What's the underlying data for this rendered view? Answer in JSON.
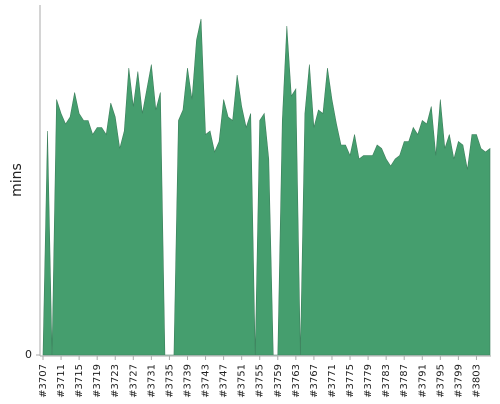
{
  "chart_data": {
    "type": "area",
    "y_label": "mins",
    "color": "#459e6e",
    "categories": [
      "#3707",
      null,
      null,
      null,
      "#3711",
      null,
      null,
      null,
      "#3715",
      null,
      null,
      null,
      "#3719",
      null,
      null,
      null,
      "#3723",
      null,
      null,
      null,
      "#3727",
      null,
      null,
      null,
      "#3731",
      null,
      null,
      null,
      "#3735",
      null,
      null,
      null,
      "#3739",
      null,
      null,
      null,
      "#3743",
      null,
      null,
      null,
      "#3747",
      null,
      null,
      null,
      "#3751",
      null,
      null,
      null,
      "#3755",
      null,
      null,
      null,
      "#3759",
      null,
      null,
      null,
      "#3763",
      null,
      null,
      null,
      "#3767",
      null,
      null,
      null,
      "#3771",
      null,
      null,
      null,
      "#3775",
      null,
      null,
      null,
      "#3779",
      null,
      null,
      null,
      "#3783",
      null,
      null,
      null,
      "#3787",
      null,
      null,
      null,
      "#3791",
      null,
      null,
      null,
      "#3795",
      null,
      null,
      null,
      "#3799",
      null,
      null,
      null,
      "#3803",
      null,
      null,
      null
    ],
    "values": [
      0,
      64,
      0,
      73,
      69,
      66,
      68,
      75,
      69,
      67,
      67,
      63,
      65,
      65,
      63,
      72,
      68,
      59,
      64,
      82,
      71,
      81,
      69,
      76,
      83,
      70,
      75,
      0,
      0,
      0,
      67,
      70,
      82,
      73,
      90,
      96,
      63,
      64,
      58,
      61,
      73,
      68,
      67,
      80,
      71,
      65,
      69,
      0,
      67,
      69,
      56,
      0,
      0,
      67,
      94,
      74,
      76,
      0,
      69,
      83,
      65,
      70,
      69,
      82,
      73,
      66,
      60,
      60,
      57,
      63,
      56,
      57,
      57,
      57,
      60,
      59,
      56,
      54,
      56,
      57,
      61,
      61,
      65,
      63,
      67,
      66,
      71,
      57,
      73,
      59,
      63,
      56,
      61,
      60,
      53,
      63,
      63,
      59,
      58,
      59
    ],
    "ylim": [
      0,
      100
    ],
    "yticks": [
      0
    ]
  }
}
